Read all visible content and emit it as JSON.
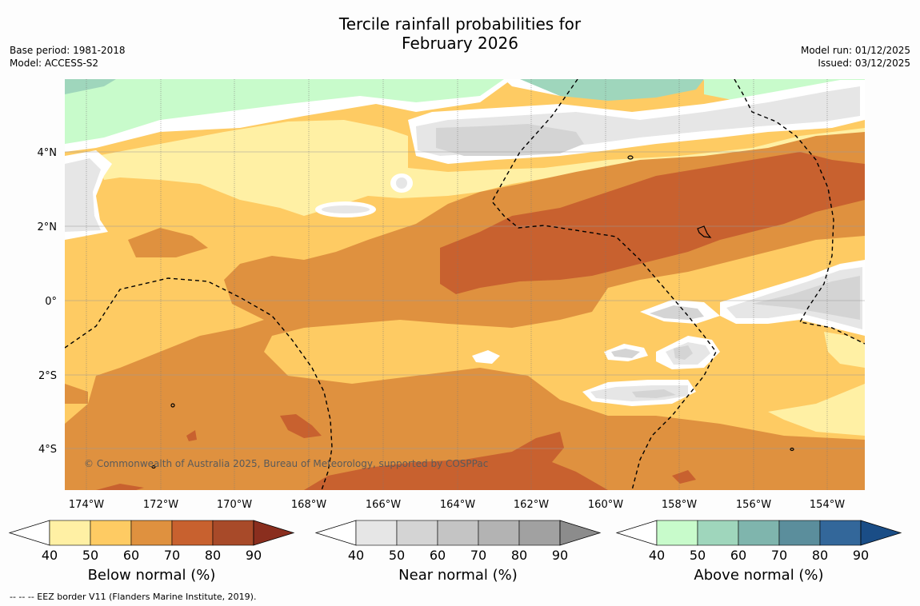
{
  "header": {
    "title_line1": "Tercile rainfall probabilities for",
    "title_line2": "February 2026",
    "base_period": "Base period: 1981-2018",
    "model": "Model: ACCESS-S2",
    "model_run": "Model run: 01/12/2025",
    "issued": "Issued: 03/12/2025"
  },
  "map": {
    "x_ticks": [
      "174°W",
      "172°W",
      "170°W",
      "168°W",
      "166°W",
      "164°W",
      "162°W",
      "160°W",
      "158°W",
      "156°W",
      "154°W"
    ],
    "y_ticks": [
      "4°N",
      "2°N",
      "0°",
      "2°S",
      "4°S"
    ],
    "copyright": "© Commonwealth of Australia 2025, Bureau of Meteorology, supported by COSPPac"
  },
  "colorbars": [
    {
      "name": "below",
      "label": "Below normal (%)",
      "ticks": [
        "40",
        "50",
        "60",
        "70",
        "80",
        "90"
      ],
      "colors": [
        "#fff0a4",
        "#fecb63",
        "#df913f",
        "#c8612f",
        "#a84a29",
        "#8a2e1e"
      ]
    },
    {
      "name": "near",
      "label": "Near normal (%)",
      "ticks": [
        "40",
        "50",
        "60",
        "70",
        "80",
        "90"
      ],
      "colors": [
        "#e6e6e6",
        "#d4d4d4",
        "#c4c4c4",
        "#b3b3b3",
        "#a1a1a1",
        "#8c8c8c"
      ]
    },
    {
      "name": "above",
      "label": "Above normal (%)",
      "ticks": [
        "40",
        "50",
        "60",
        "70",
        "80",
        "90"
      ],
      "colors": [
        "#c8fbcb",
        "#9fd6bc",
        "#7fb5ad",
        "#5b8e9c",
        "#33679a",
        "#1a4d86"
      ]
    }
  ],
  "footer": "-- -- -- EEZ border V11 (Flanders Marine Institute, 2019).",
  "colors": {
    "below_50": "#fecb63",
    "below_60": "#df913f",
    "below_70": "#c8612f",
    "below_40": "#fff0a4",
    "near_40": "#e6e6e6",
    "near_50": "#d4d4d4",
    "above_40": "#c8fbcb",
    "above_50": "#9fd6bc"
  }
}
